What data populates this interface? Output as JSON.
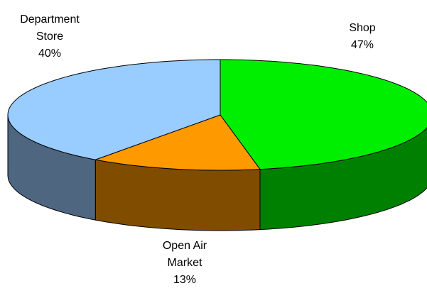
{
  "chart_data": {
    "type": "pie3d",
    "categories": [
      "Shop",
      "Open Air Market",
      "Department Store"
    ],
    "values": [
      47,
      13,
      40
    ],
    "value_labels": [
      "47%",
      "13%",
      "40%"
    ],
    "colors": [
      "#00ee00",
      "#ff9900",
      "#99ccff"
    ],
    "side_colors": [
      "#008000",
      "#7f4c00",
      "#4f6680"
    ]
  }
}
